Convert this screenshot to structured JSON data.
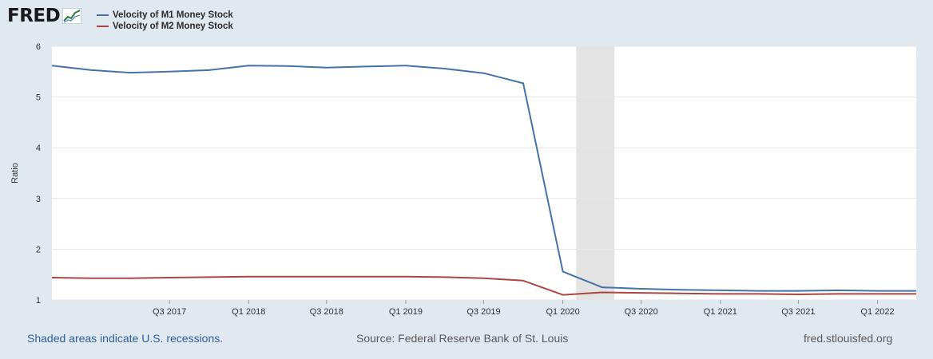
{
  "brand": {
    "logo_text": "FRED"
  },
  "chart_data": {
    "type": "line",
    "title": "",
    "xlabel": "",
    "ylabel": "Ratio",
    "ylim": [
      1,
      6
    ],
    "yticks": [
      1,
      2,
      3,
      4,
      5,
      6
    ],
    "xlim": [
      "2016-10-01",
      "2022-04-01"
    ],
    "xticks": [
      {
        "date": "2017-07-01",
        "label": "Q3 2017"
      },
      {
        "date": "2018-01-01",
        "label": "Q1 2018"
      },
      {
        "date": "2018-07-01",
        "label": "Q3 2018"
      },
      {
        "date": "2019-01-01",
        "label": "Q1 2019"
      },
      {
        "date": "2019-07-01",
        "label": "Q3 2019"
      },
      {
        "date": "2020-01-01",
        "label": "Q1 2020"
      },
      {
        "date": "2020-07-01",
        "label": "Q3 2020"
      },
      {
        "date": "2021-01-01",
        "label": "Q1 2021"
      },
      {
        "date": "2021-07-01",
        "label": "Q3 2021"
      },
      {
        "date": "2022-01-01",
        "label": "Q1 2022"
      }
    ],
    "grid": true,
    "legend_position": "top-left",
    "recessions": [
      {
        "start": "2020-02-01",
        "end": "2020-04-30"
      }
    ],
    "x": [
      "2016-10-01",
      "2017-01-01",
      "2017-04-01",
      "2017-07-01",
      "2017-10-01",
      "2018-01-01",
      "2018-04-01",
      "2018-07-01",
      "2018-10-01",
      "2019-01-01",
      "2019-04-01",
      "2019-07-01",
      "2019-10-01",
      "2020-01-01",
      "2020-04-01",
      "2020-07-01",
      "2020-10-01",
      "2021-01-01",
      "2021-04-01",
      "2021-07-01",
      "2021-10-01",
      "2022-01-01",
      "2022-04-01"
    ],
    "series": [
      {
        "name": "Velocity of M1 Money Stock",
        "color": "#4572a7",
        "values": [
          5.62,
          5.53,
          5.48,
          5.5,
          5.53,
          5.62,
          5.61,
          5.58,
          5.6,
          5.62,
          5.56,
          5.47,
          5.27,
          1.56,
          1.25,
          1.22,
          1.2,
          1.19,
          1.18,
          1.18,
          1.19,
          1.18,
          1.18
        ]
      },
      {
        "name": "Velocity of M2 Money Stock",
        "color": "#aa4643",
        "values": [
          1.44,
          1.43,
          1.43,
          1.44,
          1.45,
          1.46,
          1.46,
          1.46,
          1.46,
          1.46,
          1.45,
          1.43,
          1.38,
          1.1,
          1.15,
          1.14,
          1.13,
          1.12,
          1.12,
          1.11,
          1.12,
          1.12,
          1.12
        ]
      }
    ]
  },
  "footer": {
    "recession_note": "Shaded areas indicate U.S. recessions.",
    "source": "Source: Federal Reserve Bank of St. Louis",
    "site": "fred.stlouisfed.org"
  }
}
